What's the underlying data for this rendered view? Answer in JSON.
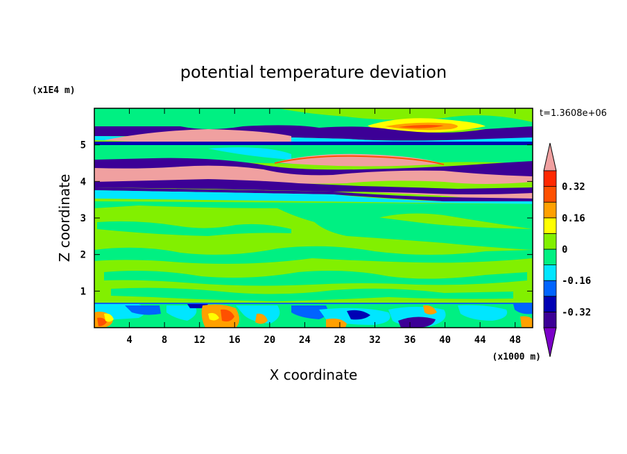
{
  "chart_data": {
    "type": "heatmap",
    "title": "potential temperature deviation",
    "xlabel": "X coordinate",
    "ylabel": "Z coordinate",
    "x_unit": "(x1000 m)",
    "y_unit": "(x1E4 m)",
    "time_label": "t=1.3608e+06",
    "xlim": [
      0,
      50
    ],
    "ylim": [
      0,
      6
    ],
    "x_ticks": [
      "4",
      "8",
      "12",
      "16",
      "20",
      "24",
      "28",
      "32",
      "36",
      "40",
      "44",
      "48"
    ],
    "y_ticks": [
      "1",
      "2",
      "3",
      "4",
      "5"
    ],
    "colorbar": {
      "levels": [
        -0.4,
        -0.32,
        -0.24,
        -0.16,
        -0.08,
        0,
        0.08,
        0.16,
        0.24,
        0.32,
        0.4
      ],
      "labels": [
        "0.32",
        "0.16",
        "0",
        "-0.16",
        "-0.32"
      ],
      "colors_bottom_to_top": [
        "#7b00c8",
        "#3c0096",
        "#0000b4",
        "#0064ff",
        "#00e6ff",
        "#00f082",
        "#82f000",
        "#ffff00",
        "#ffa000",
        "#ff5000",
        "#ff2800",
        "#f0a0a0"
      ]
    },
    "bands": [
      {
        "z_range": [
          5.4,
          5.6
        ],
        "value": "negative",
        "color": "#3c0096"
      },
      {
        "z_range": [
          5.05,
          5.25
        ],
        "value": "positive",
        "color": "#f0a0a0"
      },
      {
        "z_range": [
          4.3,
          4.75
        ],
        "value": "negative",
        "color": "#3c0096"
      },
      {
        "z_range": [
          3.9,
          4.35
        ],
        "value": "positive",
        "color": "#f0a0a0"
      },
      {
        "z_range": [
          3.7,
          3.9
        ],
        "value": "negative",
        "color": "#3c0096"
      },
      {
        "z_range": [
          0.7,
          3.6
        ],
        "value": "near zero",
        "color": "#82f000"
      },
      {
        "z_range": [
          0,
          0.7
        ],
        "value": "mixed",
        "color": "#ffa000"
      }
    ]
  }
}
